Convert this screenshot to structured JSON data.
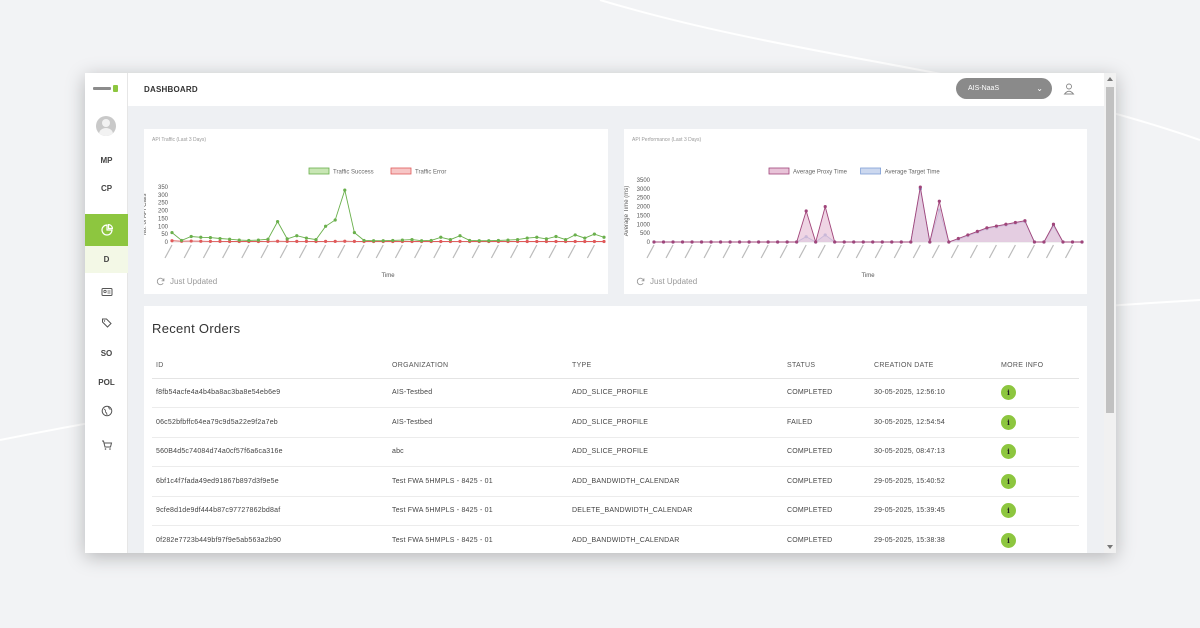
{
  "app": {
    "page_title": "DASHBOARD",
    "org_selected": "AIS-NaaS"
  },
  "sidebar": {
    "items": [
      {
        "label": "MP",
        "icon": ""
      },
      {
        "label": "CP",
        "icon": ""
      },
      {
        "label": "",
        "icon": "pie-chart-icon",
        "active": true
      },
      {
        "label": "D",
        "icon": ""
      },
      {
        "label": "",
        "icon": "id-card-icon"
      },
      {
        "label": "",
        "icon": "tags-icon"
      },
      {
        "label": "SO",
        "icon": ""
      },
      {
        "label": "POL",
        "icon": ""
      },
      {
        "label": "",
        "icon": "globe-icon"
      },
      {
        "label": "",
        "icon": "cart-icon"
      }
    ]
  },
  "traffic_card": {
    "title": "API Traffic (Last 3 Days)",
    "updated": "Just Updated"
  },
  "performance_card": {
    "title": "API Performance (Last 3 Days)",
    "updated": "Just Updated"
  },
  "chart_data": [
    {
      "type": "line",
      "title": "API Traffic (Last 3 Days)",
      "xlabel": "Time",
      "ylabel": "No. of API Calls",
      "yticks": [
        0,
        50,
        100,
        150,
        200,
        250,
        300,
        350
      ],
      "ylim": [
        0,
        350
      ],
      "legend_position": "top",
      "series": [
        {
          "name": "Traffic Success",
          "color": "#6ab04c",
          "fill": "#c8e6b4",
          "points": [
            [
              0,
              60
            ],
            [
              1,
              10
            ],
            [
              2,
              35
            ],
            [
              3,
              30
            ],
            [
              4,
              28
            ],
            [
              5,
              22
            ],
            [
              6,
              18
            ],
            [
              7,
              12
            ],
            [
              8,
              10
            ],
            [
              9,
              12
            ],
            [
              10,
              18
            ],
            [
              11,
              130
            ],
            [
              12,
              20
            ],
            [
              13,
              40
            ],
            [
              14,
              25
            ],
            [
              15,
              15
            ],
            [
              16,
              100
            ],
            [
              17,
              140
            ],
            [
              18,
              330
            ],
            [
              19,
              60
            ],
            [
              20,
              10
            ],
            [
              21,
              8
            ],
            [
              22,
              8
            ],
            [
              23,
              10
            ],
            [
              24,
              12
            ],
            [
              25,
              15
            ],
            [
              26,
              8
            ],
            [
              27,
              10
            ],
            [
              28,
              30
            ],
            [
              29,
              15
            ],
            [
              30,
              40
            ],
            [
              31,
              10
            ],
            [
              32,
              8
            ],
            [
              33,
              8
            ],
            [
              34,
              10
            ],
            [
              35,
              12
            ],
            [
              36,
              15
            ],
            [
              37,
              25
            ],
            [
              38,
              30
            ],
            [
              39,
              20
            ],
            [
              40,
              35
            ],
            [
              41,
              15
            ],
            [
              42,
              45
            ],
            [
              43,
              25
            ],
            [
              44,
              50
            ],
            [
              45,
              30
            ]
          ]
        },
        {
          "name": "Traffic Error",
          "color": "#e05a5a",
          "fill": "#f7c6c6",
          "points": [
            [
              0,
              8
            ],
            [
              1,
              5
            ],
            [
              2,
              6
            ],
            [
              3,
              5
            ],
            [
              4,
              4
            ],
            [
              5,
              4
            ],
            [
              6,
              3
            ],
            [
              7,
              3
            ],
            [
              8,
              3
            ],
            [
              9,
              3
            ],
            [
              10,
              4
            ],
            [
              11,
              5
            ],
            [
              12,
              4
            ],
            [
              13,
              4
            ],
            [
              14,
              4
            ],
            [
              15,
              3
            ],
            [
              16,
              4
            ],
            [
              17,
              4
            ],
            [
              18,
              5
            ],
            [
              19,
              4
            ],
            [
              20,
              3
            ],
            [
              21,
              3
            ],
            [
              22,
              3
            ],
            [
              23,
              3
            ],
            [
              24,
              3
            ],
            [
              25,
              3
            ],
            [
              26,
              3
            ],
            [
              27,
              3
            ],
            [
              28,
              3
            ],
            [
              29,
              3
            ],
            [
              30,
              4
            ],
            [
              31,
              3
            ],
            [
              32,
              3
            ],
            [
              33,
              3
            ],
            [
              34,
              3
            ],
            [
              35,
              3
            ],
            [
              36,
              3
            ],
            [
              37,
              3
            ],
            [
              38,
              3
            ],
            [
              39,
              3
            ],
            [
              40,
              3
            ],
            [
              41,
              3
            ],
            [
              42,
              3
            ],
            [
              43,
              3
            ],
            [
              44,
              3
            ],
            [
              45,
              3
            ]
          ]
        }
      ]
    },
    {
      "type": "area",
      "title": "API Performance (Last 3 Days)",
      "xlabel": "Time",
      "ylabel": "Average Time (ms)",
      "yticks": [
        0,
        500,
        1000,
        1500,
        2000,
        2500,
        3000,
        3500
      ],
      "ylim": [
        0,
        3500
      ],
      "legend_position": "top",
      "series": [
        {
          "name": "Average Proxy Time",
          "color": "#a0457a",
          "fill": "#e8c3d8",
          "points": [
            [
              0,
              0
            ],
            [
              1,
              0
            ],
            [
              2,
              0
            ],
            [
              3,
              0
            ],
            [
              4,
              0
            ],
            [
              5,
              0
            ],
            [
              6,
              0
            ],
            [
              7,
              0
            ],
            [
              8,
              0
            ],
            [
              9,
              0
            ],
            [
              10,
              0
            ],
            [
              11,
              0
            ],
            [
              12,
              0
            ],
            [
              13,
              0
            ],
            [
              14,
              0
            ],
            [
              15,
              0
            ],
            [
              16,
              1750
            ],
            [
              17,
              0
            ],
            [
              18,
              2000
            ],
            [
              19,
              0
            ],
            [
              20,
              0
            ],
            [
              21,
              0
            ],
            [
              22,
              0
            ],
            [
              23,
              0
            ],
            [
              24,
              0
            ],
            [
              25,
              0
            ],
            [
              26,
              0
            ],
            [
              27,
              0
            ],
            [
              28,
              3100
            ],
            [
              29,
              0
            ],
            [
              30,
              2300
            ],
            [
              31,
              0
            ],
            [
              32,
              200
            ],
            [
              33,
              400
            ],
            [
              34,
              600
            ],
            [
              35,
              800
            ],
            [
              36,
              900
            ],
            [
              37,
              1000
            ],
            [
              38,
              1100
            ],
            [
              39,
              1200
            ],
            [
              40,
              0
            ],
            [
              41,
              0
            ],
            [
              42,
              1000
            ],
            [
              43,
              0
            ],
            [
              44,
              0
            ],
            [
              45,
              0
            ]
          ]
        },
        {
          "name": "Average Target Time",
          "color": "#7f9fd6",
          "fill": "#ccd8ef",
          "points": [
            [
              0,
              0
            ],
            [
              1,
              0
            ],
            [
              2,
              0
            ],
            [
              3,
              0
            ],
            [
              4,
              0
            ],
            [
              5,
              0
            ],
            [
              6,
              0
            ],
            [
              7,
              0
            ],
            [
              8,
              0
            ],
            [
              9,
              0
            ],
            [
              10,
              0
            ],
            [
              11,
              0
            ],
            [
              12,
              0
            ],
            [
              13,
              0
            ],
            [
              14,
              0
            ],
            [
              15,
              0
            ],
            [
              16,
              300
            ],
            [
              17,
              0
            ],
            [
              18,
              400
            ],
            [
              19,
              0
            ],
            [
              20,
              0
            ],
            [
              21,
              0
            ],
            [
              22,
              0
            ],
            [
              23,
              0
            ],
            [
              24,
              0
            ],
            [
              25,
              0
            ],
            [
              26,
              0
            ],
            [
              27,
              0
            ],
            [
              28,
              3000
            ],
            [
              29,
              0
            ],
            [
              30,
              1800
            ],
            [
              31,
              0
            ],
            [
              32,
              150
            ],
            [
              33,
              350
            ],
            [
              34,
              550
            ],
            [
              35,
              750
            ],
            [
              36,
              850
            ],
            [
              37,
              950
            ],
            [
              38,
              1050
            ],
            [
              39,
              1150
            ],
            [
              40,
              0
            ],
            [
              41,
              0
            ],
            [
              42,
              900
            ],
            [
              43,
              0
            ],
            [
              44,
              0
            ],
            [
              45,
              0
            ]
          ]
        }
      ]
    }
  ],
  "orders": {
    "title": "Recent Orders",
    "columns": [
      "ID",
      "ORGANIZATION",
      "TYPE",
      "STATUS",
      "CREATION DATE",
      "MORE INFO"
    ],
    "rows": [
      {
        "id": "f8fb54acfe4a4b4ba8ac3ba8e54eb6e9",
        "organization": "AIS-Testbed",
        "type": "ADD_SLICE_PROFILE",
        "status": "COMPLETED",
        "date": "30-05-2025, 12:56:10"
      },
      {
        "id": "06c52bfbffc64ea79c9d5a22e9f2a7eb",
        "organization": "AIS-Testbed",
        "type": "ADD_SLICE_PROFILE",
        "status": "FAILED",
        "date": "30-05-2025, 12:54:54"
      },
      {
        "id": "560B4d5c74084d74a0cf57f6a6ca316e",
        "organization": "abc",
        "type": "ADD_SLICE_PROFILE",
        "status": "COMPLETED",
        "date": "30-05-2025, 08:47:13"
      },
      {
        "id": "6bf1c4f7fada49ed91867b897d3f9e5e",
        "organization": "Test FWA 5HMPLS - 8425 - 01",
        "type": "ADD_BANDWIDTH_CALENDAR",
        "status": "COMPLETED",
        "date": "29-05-2025, 15:40:52"
      },
      {
        "id": "9cfe8d1de9df444b87c97727862bd8af",
        "organization": "Test FWA 5HMPLS - 8425 - 01",
        "type": "DELETE_BANDWIDTH_CALENDAR",
        "status": "COMPLETED",
        "date": "29-05-2025, 15:39:45"
      },
      {
        "id": "0f282e7723b449bf97f9e5ab563a2b90",
        "organization": "Test FWA 5HMPLS - 8425 - 01",
        "type": "ADD_BANDWIDTH_CALENDAR",
        "status": "COMPLETED",
        "date": "29-05-2025, 15:38:38"
      }
    ],
    "info_glyph": "i"
  }
}
